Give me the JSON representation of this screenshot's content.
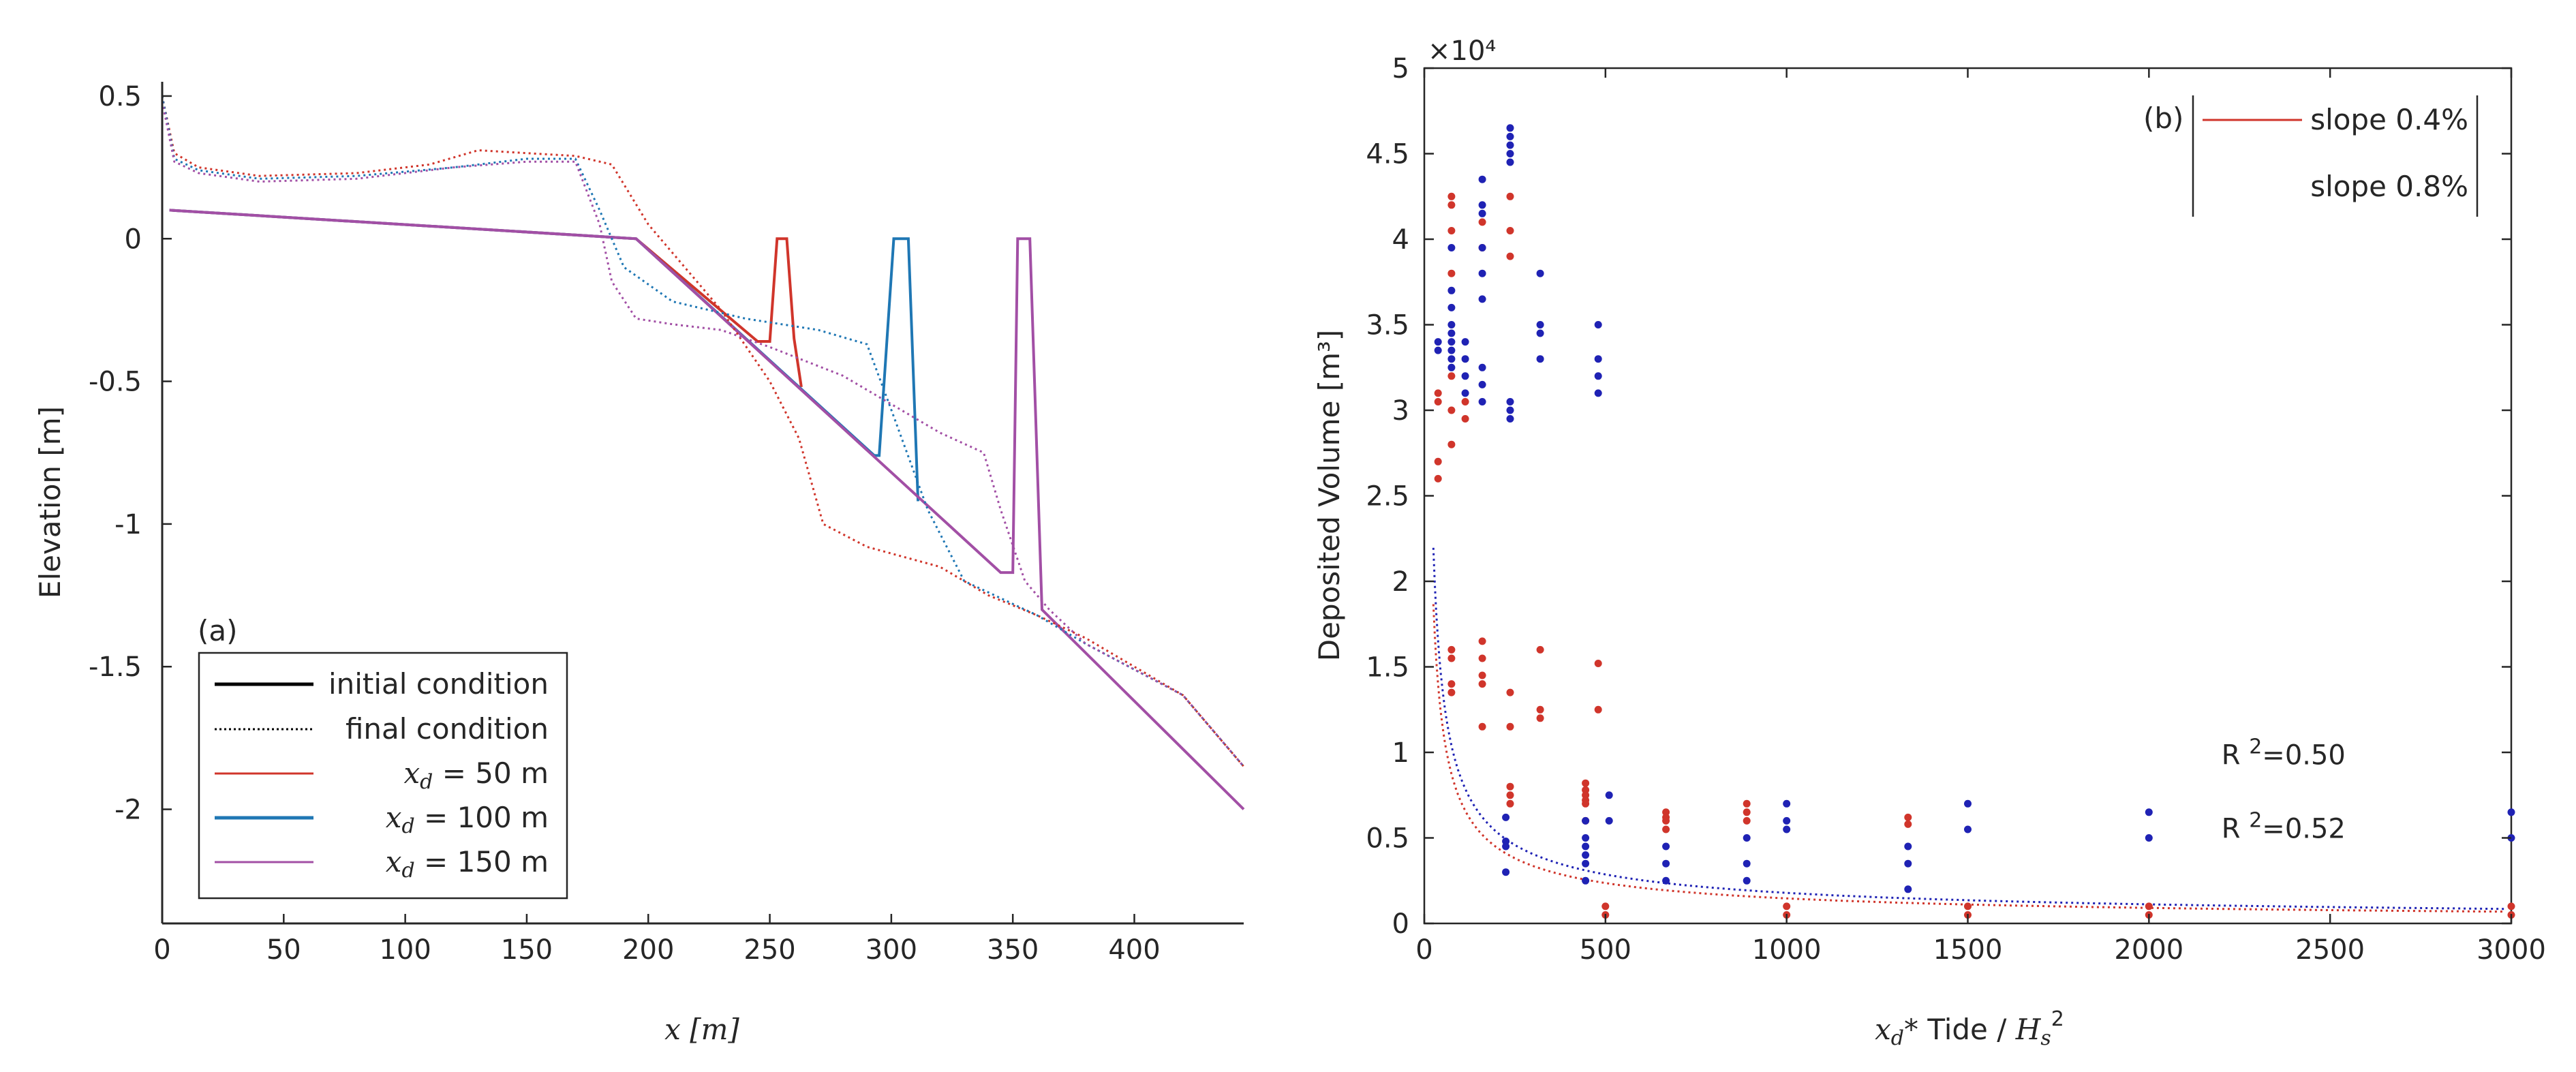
{
  "chart_data": [
    {
      "type": "line",
      "panel": "a",
      "xlabel": "x [m]",
      "ylabel": "Elevation [m]",
      "xlim": [
        0,
        445
      ],
      "ylim": [
        -2.4,
        0.55
      ],
      "xticks": [
        0,
        50,
        100,
        150,
        200,
        250,
        300,
        350,
        400
      ],
      "yticks": [
        0.5,
        0,
        -0.5,
        -1,
        -1.5,
        -2
      ],
      "ytick_labels": [
        "0.5",
        "0",
        "-0.5",
        "-1",
        "-1.5",
        "-2"
      ],
      "legend_position": "bottom-left",
      "legend": [
        {
          "label": "initial condition",
          "style": "solid",
          "color": "#000000"
        },
        {
          "label": "final condition",
          "style": "dotted",
          "color": "#000000"
        },
        {
          "label_var": "x",
          "label_sub": "d",
          "label_rest": " = 50 m",
          "style": "solid",
          "color": "#d0352b"
        },
        {
          "label_var": "x",
          "label_sub": "d",
          "label_rest": " = 100 m",
          "style": "solid",
          "color": "#1f77b4"
        },
        {
          "label_var": "x",
          "label_sub": "d",
          "label_rest": " = 150 m",
          "style": "solid",
          "color": "#a24fa5"
        }
      ],
      "series": [
        {
          "name": "initial x_d = 50 m",
          "color": "#d0352b",
          "style": "solid",
          "x": [
            3,
            195,
            245,
            250,
            253,
            257,
            260,
            263
          ],
          "y": [
            0.1,
            0.0,
            -0.36,
            -0.36,
            0.0,
            0.0,
            -0.35,
            -0.52
          ]
        },
        {
          "name": "initial x_d = 100 m",
          "color": "#1f77b4",
          "style": "solid",
          "x": [
            3,
            195,
            293,
            295,
            301,
            307,
            311
          ],
          "y": [
            0.1,
            0.0,
            -0.76,
            -0.76,
            0.0,
            0.0,
            -0.92
          ]
        },
        {
          "name": "initial x_d = 150 m",
          "color": "#a24fa5",
          "style": "solid",
          "x": [
            3,
            195,
            345,
            350,
            352,
            357,
            362,
            445
          ],
          "y": [
            0.1,
            0.0,
            -1.17,
            -1.17,
            0.0,
            0.0,
            -1.3,
            -2.0
          ]
        },
        {
          "name": "final x_d = 50 m",
          "color": "#d0352b",
          "style": "dotted",
          "x": [
            0,
            5,
            15,
            40,
            80,
            110,
            130,
            150,
            170,
            185,
            200,
            230,
            250,
            262,
            272,
            290,
            320,
            340,
            360,
            380,
            420,
            445
          ],
          "y": [
            0.5,
            0.3,
            0.25,
            0.22,
            0.23,
            0.26,
            0.31,
            0.3,
            0.29,
            0.26,
            0.05,
            -0.25,
            -0.5,
            -0.7,
            -1.0,
            -1.08,
            -1.15,
            -1.25,
            -1.32,
            -1.4,
            -1.6,
            -1.85
          ]
        },
        {
          "name": "final x_d = 100 m",
          "color": "#1f77b4",
          "style": "dotted",
          "x": [
            0,
            5,
            15,
            40,
            80,
            120,
            150,
            170,
            180,
            190,
            210,
            240,
            270,
            290,
            300,
            315,
            330,
            360,
            380,
            420,
            445
          ],
          "y": [
            0.5,
            0.28,
            0.24,
            0.21,
            0.22,
            0.25,
            0.28,
            0.28,
            0.1,
            -0.1,
            -0.22,
            -0.28,
            -0.32,
            -0.37,
            -0.6,
            -0.95,
            -1.2,
            -1.32,
            -1.42,
            -1.6,
            -1.85
          ]
        },
        {
          "name": "final x_d = 150 m",
          "color": "#a24fa5",
          "style": "dotted",
          "x": [
            0,
            5,
            15,
            40,
            80,
            120,
            150,
            170,
            180,
            185,
            195,
            210,
            230,
            250,
            280,
            300,
            320,
            338,
            345,
            355,
            365,
            380,
            420,
            445
          ],
          "y": [
            0.48,
            0.27,
            0.23,
            0.2,
            0.21,
            0.25,
            0.27,
            0.27,
            0.05,
            -0.15,
            -0.28,
            -0.3,
            -0.32,
            -0.38,
            -0.48,
            -0.58,
            -0.68,
            -0.75,
            -0.95,
            -1.2,
            -1.3,
            -1.42,
            -1.6,
            -1.85
          ]
        }
      ]
    },
    {
      "type": "scatter",
      "panel": "b",
      "title_tag": "(b)",
      "xlabel_pre": "x",
      "xlabel_sub": "d",
      "xlabel_mid": "* Tide / ",
      "xlabel_h": "H",
      "xlabel_hsub": "s",
      "xlabel_sup": "2",
      "ylabel": "Deposited Volume [m³]",
      "exponent_label": "×10⁴",
      "xlim": [
        0,
        3000
      ],
      "ylim": [
        0,
        5
      ],
      "xticks": [
        0,
        500,
        1000,
        1500,
        2000,
        2500,
        3000
      ],
      "yticks": [
        0,
        0.5,
        1,
        1.5,
        2,
        2.5,
        3,
        3.5,
        4,
        4.5,
        5
      ],
      "ytick_labels": [
        "0",
        "0.5",
        "1",
        "1.5",
        "2",
        "2.5",
        "3",
        "3.5",
        "4",
        "4.5",
        "5"
      ],
      "legend_position": "top-right",
      "legend": [
        {
          "label": "slope 0.4%",
          "color": "#d0352b"
        },
        {
          "label": "slope 0.8%",
          "color": "#1f22b4"
        }
      ],
      "annotations": [
        {
          "text": "R 2=0.50",
          "base": "R ",
          "sup": "2",
          "rest": "=0.50",
          "x": 2200,
          "y": 0.93
        },
        {
          "text": "R 2=0.52",
          "base": "R ",
          "sup": "2",
          "rest": "=0.52",
          "x": 2200,
          "y": 0.5
        }
      ],
      "fits": [
        {
          "name": "fit slope 0.8%",
          "color": "#1f22b4",
          "a": 19.6,
          "b": -0.68,
          "R2": 0.5
        },
        {
          "name": "fit slope 0.4%",
          "color": "#d0352b",
          "a": 17.2,
          "b": -0.69,
          "R2": 0.52
        }
      ],
      "series": [
        {
          "name": "slope 0.4%",
          "color": "#d0352b",
          "points": [
            [
              38,
              2.6
            ],
            [
              38,
              2.7
            ],
            [
              38,
              3.05
            ],
            [
              38,
              3.1
            ],
            [
              75,
              4.2
            ],
            [
              75,
              4.25
            ],
            [
              75,
              4.05
            ],
            [
              75,
              3.8
            ],
            [
              75,
              3.2
            ],
            [
              75,
              3.0
            ],
            [
              75,
              2.8
            ],
            [
              75,
              1.35
            ],
            [
              75,
              1.4
            ],
            [
              75,
              1.55
            ],
            [
              75,
              1.6
            ],
            [
              113,
              3.05
            ],
            [
              113,
              2.95
            ],
            [
              160,
              4.1
            ],
            [
              160,
              3.95
            ],
            [
              160,
              1.65
            ],
            [
              160,
              1.55
            ],
            [
              160,
              1.45
            ],
            [
              160,
              1.4
            ],
            [
              160,
              1.15
            ],
            [
              237,
              4.25
            ],
            [
              237,
              4.05
            ],
            [
              237,
              3.9
            ],
            [
              237,
              1.35
            ],
            [
              237,
              1.15
            ],
            [
              237,
              0.8
            ],
            [
              237,
              0.75
            ],
            [
              237,
              0.7
            ],
            [
              320,
              1.6
            ],
            [
              320,
              1.25
            ],
            [
              320,
              1.2
            ],
            [
              445,
              0.82
            ],
            [
              445,
              0.78
            ],
            [
              445,
              0.75
            ],
            [
              445,
              0.72
            ],
            [
              445,
              0.7
            ],
            [
              445,
              0.6
            ],
            [
              480,
              1.52
            ],
            [
              480,
              1.25
            ],
            [
              500,
              0.1
            ],
            [
              500,
              0.05
            ],
            [
              667,
              0.65
            ],
            [
              667,
              0.62
            ],
            [
              667,
              0.6
            ],
            [
              667,
              0.55
            ],
            [
              890,
              0.7
            ],
            [
              890,
              0.65
            ],
            [
              890,
              0.6
            ],
            [
              1000,
              0.1
            ],
            [
              1000,
              0.05
            ],
            [
              1335,
              0.62
            ],
            [
              1335,
              0.58
            ],
            [
              1500,
              0.1
            ],
            [
              1500,
              0.05
            ],
            [
              2000,
              0.1
            ],
            [
              2000,
              0.05
            ],
            [
              3000,
              0.1
            ],
            [
              3000,
              0.05
            ]
          ]
        },
        {
          "name": "slope 0.8%",
          "color": "#1f22b4",
          "points": [
            [
              38,
              3.4
            ],
            [
              38,
              3.35
            ],
            [
              75,
              3.95
            ],
            [
              75,
              3.7
            ],
            [
              75,
              3.6
            ],
            [
              75,
              3.5
            ],
            [
              75,
              3.45
            ],
            [
              75,
              3.4
            ],
            [
              75,
              3.35
            ],
            [
              75,
              3.3
            ],
            [
              75,
              3.25
            ],
            [
              113,
              3.4
            ],
            [
              113,
              3.3
            ],
            [
              113,
              3.2
            ],
            [
              113,
              3.1
            ],
            [
              160,
              4.35
            ],
            [
              160,
              4.2
            ],
            [
              160,
              4.15
            ],
            [
              160,
              3.95
            ],
            [
              160,
              3.8
            ],
            [
              160,
              3.65
            ],
            [
              160,
              3.25
            ],
            [
              160,
              3.15
            ],
            [
              160,
              3.05
            ],
            [
              237,
              4.65
            ],
            [
              237,
              4.6
            ],
            [
              237,
              4.55
            ],
            [
              237,
              4.5
            ],
            [
              237,
              4.45
            ],
            [
              237,
              3.05
            ],
            [
              237,
              3.0
            ],
            [
              237,
              2.95
            ],
            [
              225,
              0.62
            ],
            [
              225,
              0.48
            ],
            [
              225,
              0.45
            ],
            [
              225,
              0.3
            ],
            [
              320,
              3.8
            ],
            [
              320,
              3.5
            ],
            [
              320,
              3.45
            ],
            [
              320,
              3.3
            ],
            [
              445,
              0.6
            ],
            [
              445,
              0.5
            ],
            [
              445,
              0.45
            ],
            [
              445,
              0.4
            ],
            [
              445,
              0.35
            ],
            [
              445,
              0.25
            ],
            [
              480,
              3.5
            ],
            [
              480,
              3.3
            ],
            [
              480,
              3.2
            ],
            [
              480,
              3.1
            ],
            [
              510,
              0.75
            ],
            [
              510,
              0.6
            ],
            [
              667,
              0.45
            ],
            [
              667,
              0.35
            ],
            [
              667,
              0.25
            ],
            [
              890,
              0.5
            ],
            [
              890,
              0.35
            ],
            [
              890,
              0.25
            ],
            [
              1000,
              0.7
            ],
            [
              1000,
              0.6
            ],
            [
              1000,
              0.55
            ],
            [
              1335,
              0.45
            ],
            [
              1335,
              0.35
            ],
            [
              1335,
              0.2
            ],
            [
              1500,
              0.7
            ],
            [
              1500,
              0.55
            ],
            [
              2000,
              0.65
            ],
            [
              2000,
              0.5
            ],
            [
              3000,
              0.65
            ],
            [
              3000,
              0.5
            ]
          ]
        }
      ]
    }
  ]
}
